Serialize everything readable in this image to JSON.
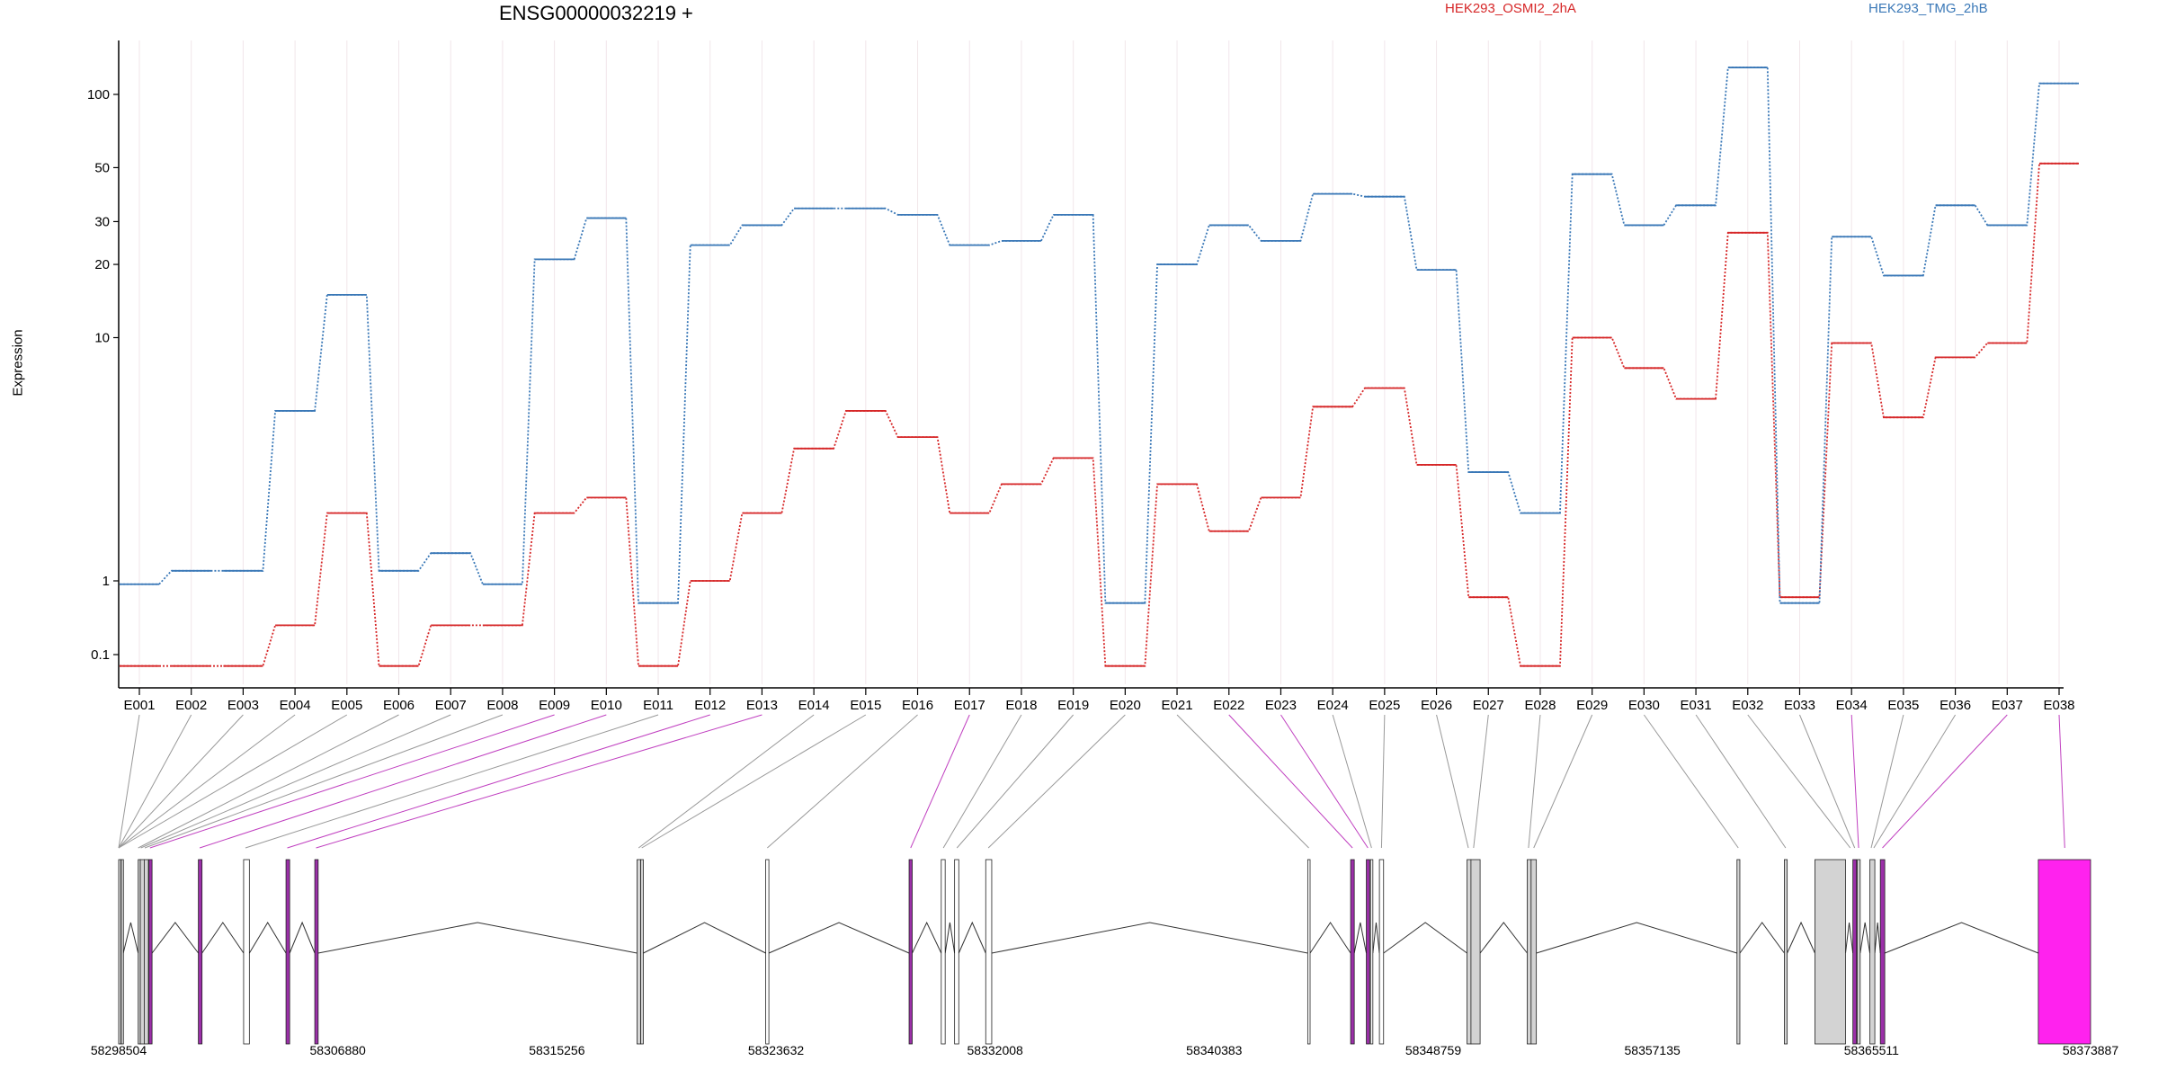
{
  "title": "ENSG00000032219 +",
  "legend": {
    "series_a": "HEK293_OSMI2_2hA",
    "series_b": "HEK293_TMG_2hB"
  },
  "colors": {
    "series_a": "#d62728",
    "series_b": "#3a78b7",
    "exon_plain": "#ffffff",
    "exon_shaded": "#d3d3d3",
    "exon_magenta": "#ff22ee",
    "exon_purple": "#9b2fa8",
    "guide_gray": "#999999",
    "guide_magenta": "#c040c0"
  },
  "chart_data": {
    "type": "line",
    "style": "dotted step",
    "ylabel": "Expression",
    "yscale": "log",
    "yticks": [
      "0.1",
      "1",
      "10",
      "20",
      "30",
      "50",
      "100"
    ],
    "categories": [
      "E001",
      "E002",
      "E003",
      "E004",
      "E005",
      "E006",
      "E007",
      "E008",
      "E009",
      "E010",
      "E011",
      "E012",
      "E013",
      "E014",
      "E015",
      "E016",
      "E017",
      "E018",
      "E019",
      "E020",
      "E021",
      "E022",
      "E023",
      "E024",
      "E025",
      "E026",
      "E027",
      "E028",
      "E029",
      "E030",
      "E031",
      "E032",
      "E033",
      "E034",
      "E035",
      "E036",
      "E037",
      "E038"
    ],
    "series": [
      {
        "name": "HEK293_OSMI2_2hA",
        "values": [
          0.07,
          0.07,
          0.07,
          0.25,
          1.9,
          0.07,
          0.25,
          0.25,
          1.9,
          2.2,
          0.07,
          1.0,
          1.9,
          3.5,
          5.0,
          3.9,
          1.9,
          2.5,
          3.2,
          0.07,
          2.5,
          1.6,
          2.2,
          5.2,
          6.2,
          3.0,
          0.6,
          0.07,
          10,
          7.5,
          5.6,
          27,
          0.6,
          9.5,
          4.7,
          8.3,
          9.5,
          52
        ]
      },
      {
        "name": "HEK293_TMG_2hB",
        "values": [
          0.9,
          1.1,
          1.1,
          5.0,
          15,
          1.1,
          1.3,
          0.9,
          21,
          31,
          0.5,
          24,
          29,
          34,
          34,
          32,
          24,
          25,
          32,
          0.5,
          20,
          29,
          25,
          39,
          38,
          19,
          2.8,
          1.9,
          47,
          29,
          35,
          129,
          0.5,
          26,
          18,
          35,
          29,
          111
        ]
      }
    ],
    "gene_coords": {
      "ticks": [
        "58298504",
        "58306880",
        "58315256",
        "58323632",
        "58332008",
        "58340383",
        "58348759",
        "58357135",
        "58365511",
        "58373887"
      ],
      "min": 58298504,
      "max": 58373887
    },
    "exons": [
      {
        "start": 58298504,
        "end": 58298580,
        "fill": "shaded"
      },
      {
        "start": 58298600,
        "end": 58298680,
        "fill": "shaded"
      },
      {
        "start": 58299250,
        "end": 58299330,
        "fill": "shaded"
      },
      {
        "start": 58299330,
        "end": 58299480,
        "fill": "shaded"
      },
      {
        "start": 58299480,
        "end": 58299640,
        "fill": "shaded"
      },
      {
        "start": 58299660,
        "end": 58299780,
        "fill": "purple"
      },
      {
        "start": 58301550,
        "end": 58301690,
        "fill": "purple"
      },
      {
        "start": 58303280,
        "end": 58303500,
        "fill": "plain"
      },
      {
        "start": 58304900,
        "end": 58305040,
        "fill": "purple"
      },
      {
        "start": 58306000,
        "end": 58306130,
        "fill": "purple"
      },
      {
        "start": 58318320,
        "end": 58318460,
        "fill": "shaded"
      },
      {
        "start": 58318460,
        "end": 58318560,
        "fill": "shaded"
      },
      {
        "start": 58323240,
        "end": 58323360,
        "fill": "plain"
      },
      {
        "start": 58328720,
        "end": 58328840,
        "fill": "purple"
      },
      {
        "start": 58329950,
        "end": 58330100,
        "fill": "plain"
      },
      {
        "start": 58330460,
        "end": 58330620,
        "fill": "plain"
      },
      {
        "start": 58331650,
        "end": 58331880,
        "fill": "plain"
      },
      {
        "start": 58343960,
        "end": 58344050,
        "fill": "plain"
      },
      {
        "start": 58345600,
        "end": 58345740,
        "fill": "purple"
      },
      {
        "start": 58346200,
        "end": 58346330,
        "fill": "purple"
      },
      {
        "start": 58346360,
        "end": 58346450,
        "fill": "plain"
      },
      {
        "start": 58346700,
        "end": 58346860,
        "fill": "plain"
      },
      {
        "start": 58350050,
        "end": 58350200,
        "fill": "shaded"
      },
      {
        "start": 58350200,
        "end": 58350550,
        "fill": "shaded"
      },
      {
        "start": 58352350,
        "end": 58352500,
        "fill": "shaded"
      },
      {
        "start": 58352500,
        "end": 58352700,
        "fill": "shaded"
      },
      {
        "start": 58360370,
        "end": 58360480,
        "fill": "shaded"
      },
      {
        "start": 58362180,
        "end": 58362290,
        "fill": "shaded"
      },
      {
        "start": 58363350,
        "end": 58364520,
        "fill": "shaded"
      },
      {
        "start": 58364800,
        "end": 58364940,
        "fill": "purple"
      },
      {
        "start": 58364970,
        "end": 58365080,
        "fill": "shaded"
      },
      {
        "start": 58365450,
        "end": 58365640,
        "fill": "shaded"
      },
      {
        "start": 58365850,
        "end": 58366020,
        "fill": "purple"
      },
      {
        "start": 58371890,
        "end": 58373887,
        "fill": "magenta"
      }
    ],
    "links": [
      {
        "exon": 1,
        "x": 58298504,
        "color": "gray"
      },
      {
        "exon": 2,
        "x": 58298504,
        "color": "gray"
      },
      {
        "exon": 3,
        "x": 58298504,
        "color": "gray"
      },
      {
        "exon": 4,
        "x": 58298504,
        "color": "gray"
      },
      {
        "exon": 5,
        "x": 58298504,
        "color": "gray"
      },
      {
        "exon": 6,
        "x": 58299250,
        "color": "gray"
      },
      {
        "exon": 7,
        "x": 58299350,
        "color": "gray"
      },
      {
        "exon": 8,
        "x": 58299500,
        "color": "gray"
      },
      {
        "exon": 9,
        "x": 58299700,
        "color": "magenta"
      },
      {
        "exon": 10,
        "x": 58301600,
        "color": "magenta"
      },
      {
        "exon": 11,
        "x": 58303350,
        "color": "gray"
      },
      {
        "exon": 12,
        "x": 58304950,
        "color": "magenta"
      },
      {
        "exon": 13,
        "x": 58306050,
        "color": "magenta"
      },
      {
        "exon": 14,
        "x": 58318380,
        "color": "gray"
      },
      {
        "exon": 15,
        "x": 58318500,
        "color": "gray"
      },
      {
        "exon": 16,
        "x": 58323300,
        "color": "gray"
      },
      {
        "exon": 17,
        "x": 58328780,
        "color": "magenta"
      },
      {
        "exon": 18,
        "x": 58330030,
        "color": "gray"
      },
      {
        "exon": 19,
        "x": 58330550,
        "color": "gray"
      },
      {
        "exon": 20,
        "x": 58331750,
        "color": "gray"
      },
      {
        "exon": 21,
        "x": 58344000,
        "color": "gray"
      },
      {
        "exon": 22,
        "x": 58345670,
        "color": "magenta"
      },
      {
        "exon": 23,
        "x": 58346260,
        "color": "magenta"
      },
      {
        "exon": 24,
        "x": 58346400,
        "color": "gray"
      },
      {
        "exon": 25,
        "x": 58346780,
        "color": "gray"
      },
      {
        "exon": 26,
        "x": 58350100,
        "color": "gray"
      },
      {
        "exon": 27,
        "x": 58350300,
        "color": "gray"
      },
      {
        "exon": 28,
        "x": 58352400,
        "color": "gray"
      },
      {
        "exon": 29,
        "x": 58352600,
        "color": "gray"
      },
      {
        "exon": 30,
        "x": 58360420,
        "color": "gray"
      },
      {
        "exon": 31,
        "x": 58362230,
        "color": "gray"
      },
      {
        "exon": 32,
        "x": 58364700,
        "color": "gray"
      },
      {
        "exon": 33,
        "x": 58364870,
        "color": "gray"
      },
      {
        "exon": 34,
        "x": 58365020,
        "color": "magenta"
      },
      {
        "exon": 35,
        "x": 58365500,
        "color": "gray"
      },
      {
        "exon": 36,
        "x": 58365600,
        "color": "gray"
      },
      {
        "exon": 37,
        "x": 58365930,
        "color": "magenta"
      },
      {
        "exon": 38,
        "x": 58372900,
        "color": "magenta"
      }
    ]
  }
}
